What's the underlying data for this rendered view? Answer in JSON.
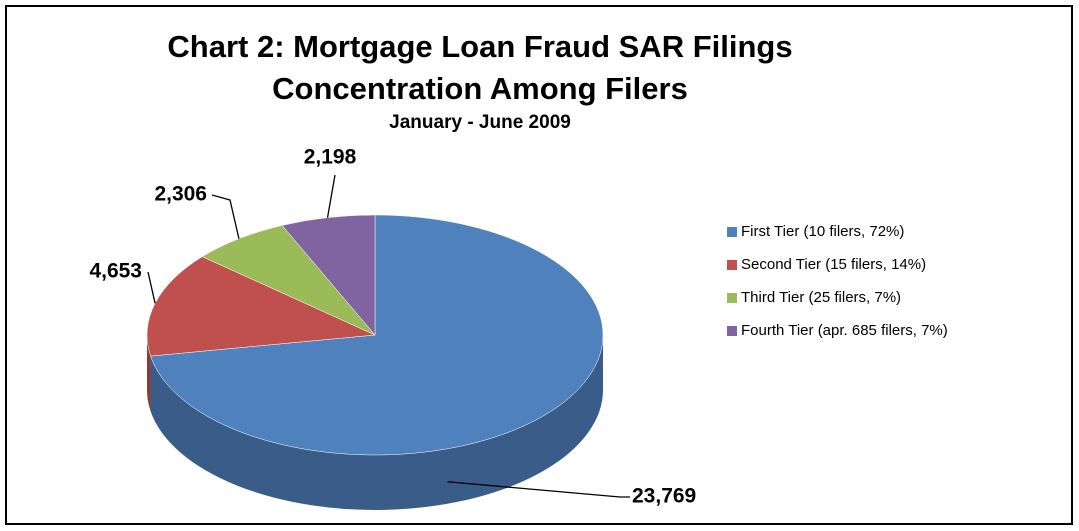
{
  "chart_data": {
    "type": "pie",
    "title": "Chart 2: Mortgage Loan Fraud SAR Filings\nConcentration Among Filers",
    "subtitle": "January - June 2009",
    "categories": [
      "First Tier (10 filers, 72%)",
      "Second Tier (15 filers, 14%)",
      "Third Tier (25 filers, 7%)",
      "Fourth Tier (apr. 685 filers, 7%)"
    ],
    "values": [
      23769,
      4653,
      2306,
      2198
    ],
    "value_labels": [
      "23,769",
      "4,653",
      "2,306",
      "2,198"
    ],
    "colors": [
      "#4f81bd",
      "#c0504d",
      "#9bbb59",
      "#8064a2"
    ],
    "legend": "right"
  }
}
